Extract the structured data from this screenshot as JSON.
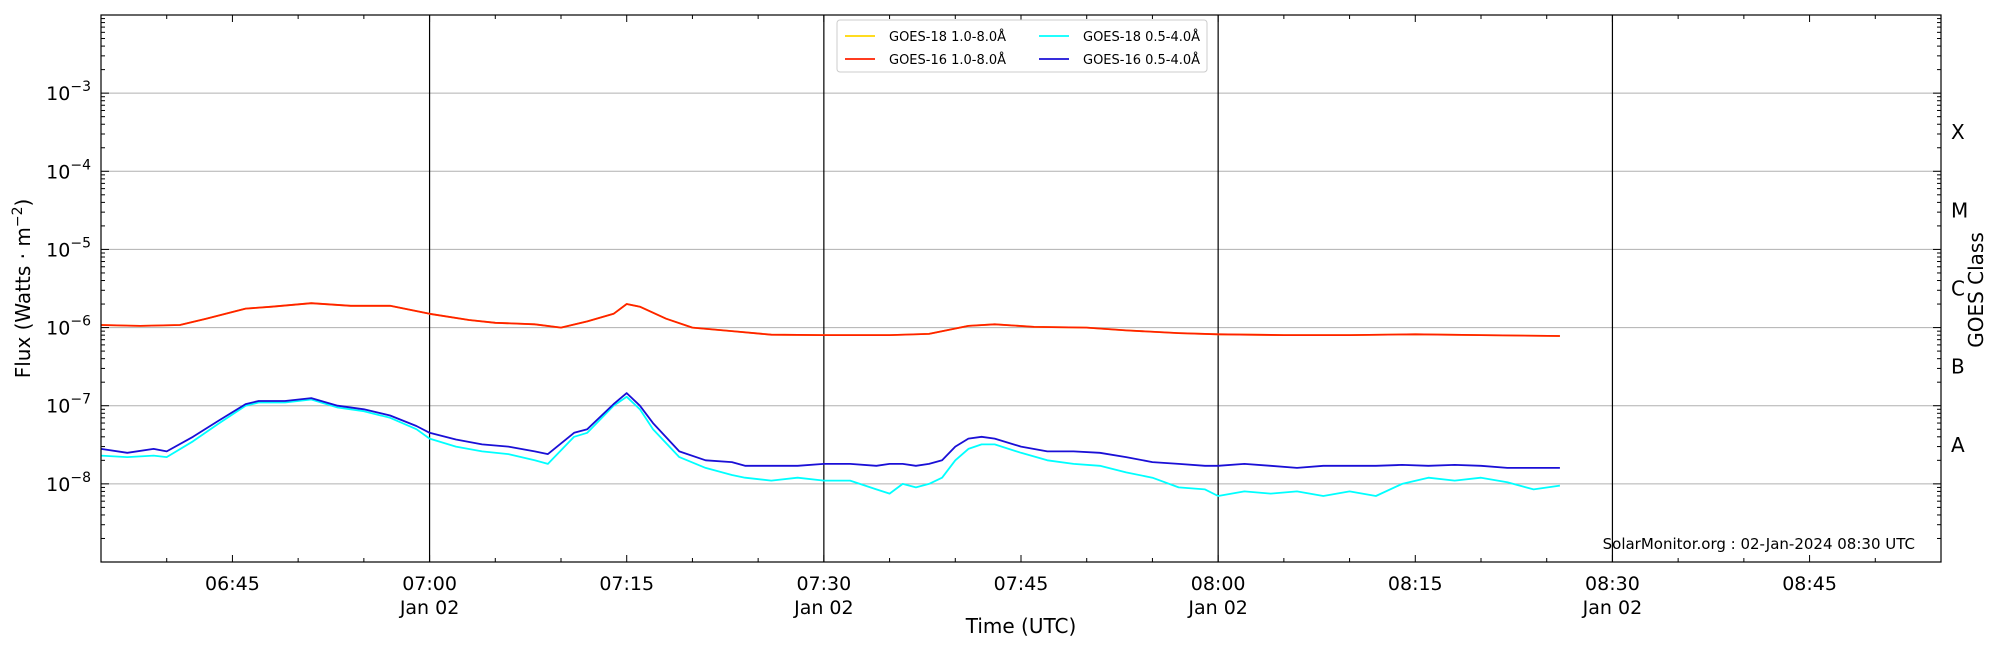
{
  "chart_data": {
    "type": "line",
    "xlabel": "Time (UTC)",
    "ylabel": "Flux (Watts · m⁻²)",
    "right_ylabel": "GOES Class",
    "footer": "SolarMonitor.org : 02-Jan-2024 08:30 UTC",
    "yscale": "log",
    "ylim": [
      1e-09,
      0.01
    ],
    "xlim": [
      "06:35",
      "08:55"
    ],
    "grid": "horizontal at decades",
    "legend_position": "top-center",
    "x_ticks": [
      {
        "time": "06:45",
        "label": "06:45",
        "date": ""
      },
      {
        "time": "07:00",
        "label": "07:00",
        "date": "Jan 02"
      },
      {
        "time": "07:15",
        "label": "07:15",
        "date": ""
      },
      {
        "time": "07:30",
        "label": "07:30",
        "date": "Jan 02"
      },
      {
        "time": "07:45",
        "label": "07:45",
        "date": ""
      },
      {
        "time": "08:00",
        "label": "08:00",
        "date": "Jan 02"
      },
      {
        "time": "08:15",
        "label": "08:15",
        "date": ""
      },
      {
        "time": "08:30",
        "label": "08:30",
        "date": "Jan 02"
      },
      {
        "time": "08:45",
        "label": "08:45",
        "date": ""
      }
    ],
    "y_ticks": [
      {
        "exp": -8,
        "label": "10",
        "sup": "−8"
      },
      {
        "exp": -7,
        "label": "10",
        "sup": "−7"
      },
      {
        "exp": -6,
        "label": "10",
        "sup": "−6"
      },
      {
        "exp": -5,
        "label": "10",
        "sup": "−5"
      },
      {
        "exp": -4,
        "label": "10",
        "sup": "−4"
      },
      {
        "exp": -3,
        "label": "10",
        "sup": "−3"
      }
    ],
    "goes_classes": [
      {
        "label": "A",
        "flux": 3.16e-08
      },
      {
        "label": "B",
        "flux": 3.16e-07
      },
      {
        "label": "C",
        "flux": 3.16e-06
      },
      {
        "label": "M",
        "flux": 3.16e-05
      },
      {
        "label": "X",
        "flux": 0.000316
      }
    ],
    "vertical_markers": [
      "07:00",
      "07:30",
      "08:00",
      "08:30"
    ],
    "legend": [
      {
        "name": "GOES-18 1.0-8.0Å",
        "color": "#ffd700"
      },
      {
        "name": "GOES-18 0.5-4.0Å",
        "color": "#00ffff"
      },
      {
        "name": "GOES-16 1.0-8.0Å",
        "color": "#ff2000"
      },
      {
        "name": "GOES-16 0.5-4.0Å",
        "color": "#1a0fd6"
      }
    ],
    "series": [
      {
        "name": "GOES-18 1.0-8.0Å",
        "color": "#ffd700",
        "x": [
          "06:35",
          "06:38",
          "06:41",
          "06:43",
          "06:46",
          "06:48",
          "06:51",
          "06:54",
          "06:57",
          "07:00",
          "07:03",
          "07:05",
          "07:08",
          "07:10",
          "07:12",
          "07:14",
          "07:15",
          "07:16",
          "07:18",
          "07:20",
          "07:23",
          "07:26",
          "07:30",
          "07:35",
          "07:38",
          "07:41",
          "07:43",
          "07:46",
          "07:50",
          "07:53",
          "07:57",
          "08:00",
          "08:05",
          "08:10",
          "08:15",
          "08:20",
          "08:26"
        ],
        "y": [
          1.08e-06,
          1.05e-06,
          1.08e-06,
          1.3e-06,
          1.75e-06,
          1.85e-06,
          2.05e-06,
          1.9e-06,
          1.9e-06,
          1.5e-06,
          1.25e-06,
          1.15e-06,
          1.1e-06,
          1e-06,
          1.2e-06,
          1.5e-06,
          2e-06,
          1.85e-06,
          1.3e-06,
          1e-06,
          9e-07,
          8.1e-07,
          8e-07,
          8e-07,
          8.3e-07,
          1.05e-06,
          1.1e-06,
          1.02e-06,
          1e-06,
          9.2e-07,
          8.5e-07,
          8.2e-07,
          8e-07,
          8e-07,
          8.2e-07,
          8e-07,
          7.8e-07
        ]
      },
      {
        "name": "GOES-16 1.0-8.0Å",
        "color": "#ff2000",
        "x": [
          "06:35",
          "06:38",
          "06:41",
          "06:43",
          "06:46",
          "06:48",
          "06:51",
          "06:54",
          "06:57",
          "07:00",
          "07:03",
          "07:05",
          "07:08",
          "07:10",
          "07:12",
          "07:14",
          "07:15",
          "07:16",
          "07:18",
          "07:20",
          "07:23",
          "07:26",
          "07:30",
          "07:35",
          "07:38",
          "07:41",
          "07:43",
          "07:46",
          "07:50",
          "07:53",
          "07:57",
          "08:00",
          "08:05",
          "08:10",
          "08:15",
          "08:20",
          "08:26"
        ],
        "y": [
          1.08e-06,
          1.05e-06,
          1.08e-06,
          1.3e-06,
          1.75e-06,
          1.85e-06,
          2.05e-06,
          1.9e-06,
          1.9e-06,
          1.5e-06,
          1.25e-06,
          1.15e-06,
          1.1e-06,
          1e-06,
          1.2e-06,
          1.5e-06,
          2e-06,
          1.85e-06,
          1.3e-06,
          1e-06,
          9e-07,
          8.1e-07,
          8e-07,
          8e-07,
          8.3e-07,
          1.05e-06,
          1.1e-06,
          1.02e-06,
          1e-06,
          9.2e-07,
          8.5e-07,
          8.2e-07,
          8e-07,
          8e-07,
          8.2e-07,
          8e-07,
          7.8e-07
        ]
      },
      {
        "name": "GOES-18 0.5-4.0Å",
        "color": "#00ffff",
        "x": [
          "06:35",
          "06:37",
          "06:39",
          "06:40",
          "06:42",
          "06:44",
          "06:46",
          "06:47",
          "06:49",
          "06:51",
          "06:53",
          "06:55",
          "06:57",
          "06:59",
          "07:00",
          "07:02",
          "07:04",
          "07:06",
          "07:08",
          "07:09",
          "07:11",
          "07:12",
          "07:14",
          "07:15",
          "07:16",
          "07:17",
          "07:19",
          "07:21",
          "07:23",
          "07:24",
          "07:26",
          "07:28",
          "07:30",
          "07:32",
          "07:34",
          "07:35",
          "07:36",
          "07:37",
          "07:38",
          "07:39",
          "07:40",
          "07:41",
          "07:42",
          "07:43",
          "07:45",
          "07:47",
          "07:49",
          "07:51",
          "07:53",
          "07:55",
          "07:57",
          "07:59",
          "08:00",
          "08:02",
          "08:04",
          "08:06",
          "08:08",
          "08:10",
          "08:12",
          "08:14",
          "08:16",
          "08:18",
          "08:20",
          "08:22",
          "08:24",
          "08:26"
        ],
        "y": [
          2.3e-08,
          2.2e-08,
          2.3e-08,
          2.2e-08,
          3.5e-08,
          6e-08,
          1e-07,
          1.1e-07,
          1.1e-07,
          1.2e-07,
          9.5e-08,
          8.5e-08,
          7e-08,
          5e-08,
          3.8e-08,
          3e-08,
          2.6e-08,
          2.4e-08,
          2e-08,
          1.8e-08,
          4e-08,
          4.5e-08,
          1e-07,
          1.3e-07,
          9e-08,
          5e-08,
          2.2e-08,
          1.6e-08,
          1.3e-08,
          1.2e-08,
          1.1e-08,
          1.2e-08,
          1.1e-08,
          1.1e-08,
          8.5e-09,
          7.5e-09,
          1e-08,
          9e-09,
          1e-08,
          1.2e-08,
          2e-08,
          2.8e-08,
          3.2e-08,
          3.2e-08,
          2.5e-08,
          2e-08,
          1.8e-08,
          1.7e-08,
          1.4e-08,
          1.2e-08,
          9e-09,
          8.5e-09,
          7e-09,
          8e-09,
          7.5e-09,
          8e-09,
          7e-09,
          8e-09,
          7e-09,
          1e-08,
          1.2e-08,
          1.1e-08,
          1.2e-08,
          1.05e-08,
          8.5e-09,
          9.5e-09
        ]
      },
      {
        "name": "GOES-16 0.5-4.0Å",
        "color": "#1a0fd6",
        "x": [
          "06:35",
          "06:37",
          "06:39",
          "06:40",
          "06:42",
          "06:44",
          "06:46",
          "06:47",
          "06:49",
          "06:51",
          "06:53",
          "06:55",
          "06:57",
          "06:59",
          "07:00",
          "07:02",
          "07:04",
          "07:06",
          "07:08",
          "07:09",
          "07:11",
          "07:12",
          "07:14",
          "07:15",
          "07:16",
          "07:17",
          "07:19",
          "07:21",
          "07:23",
          "07:24",
          "07:26",
          "07:28",
          "07:30",
          "07:32",
          "07:34",
          "07:35",
          "07:36",
          "07:37",
          "07:38",
          "07:39",
          "07:40",
          "07:41",
          "07:42",
          "07:43",
          "07:45",
          "07:47",
          "07:49",
          "07:51",
          "07:53",
          "07:55",
          "07:57",
          "07:59",
          "08:00",
          "08:02",
          "08:04",
          "08:06",
          "08:08",
          "08:10",
          "08:12",
          "08:14",
          "08:16",
          "08:18",
          "08:20",
          "08:22",
          "08:24",
          "08:26"
        ],
        "y": [
          2.8e-08,
          2.5e-08,
          2.8e-08,
          2.6e-08,
          4e-08,
          6.5e-08,
          1.05e-07,
          1.15e-07,
          1.15e-07,
          1.25e-07,
          1e-07,
          9e-08,
          7.5e-08,
          5.5e-08,
          4.5e-08,
          3.7e-08,
          3.2e-08,
          3e-08,
          2.6e-08,
          2.4e-08,
          4.5e-08,
          5e-08,
          1.05e-07,
          1.45e-07,
          1e-07,
          6e-08,
          2.6e-08,
          2e-08,
          1.9e-08,
          1.7e-08,
          1.7e-08,
          1.7e-08,
          1.8e-08,
          1.8e-08,
          1.7e-08,
          1.8e-08,
          1.8e-08,
          1.7e-08,
          1.8e-08,
          2e-08,
          3e-08,
          3.8e-08,
          4e-08,
          3.8e-08,
          3e-08,
          2.6e-08,
          2.6e-08,
          2.5e-08,
          2.2e-08,
          1.9e-08,
          1.8e-08,
          1.7e-08,
          1.7e-08,
          1.8e-08,
          1.7e-08,
          1.6e-08,
          1.7e-08,
          1.7e-08,
          1.7e-08,
          1.75e-08,
          1.7e-08,
          1.75e-08,
          1.7e-08,
          1.6e-08,
          1.6e-08,
          1.6e-08
        ]
      }
    ]
  }
}
